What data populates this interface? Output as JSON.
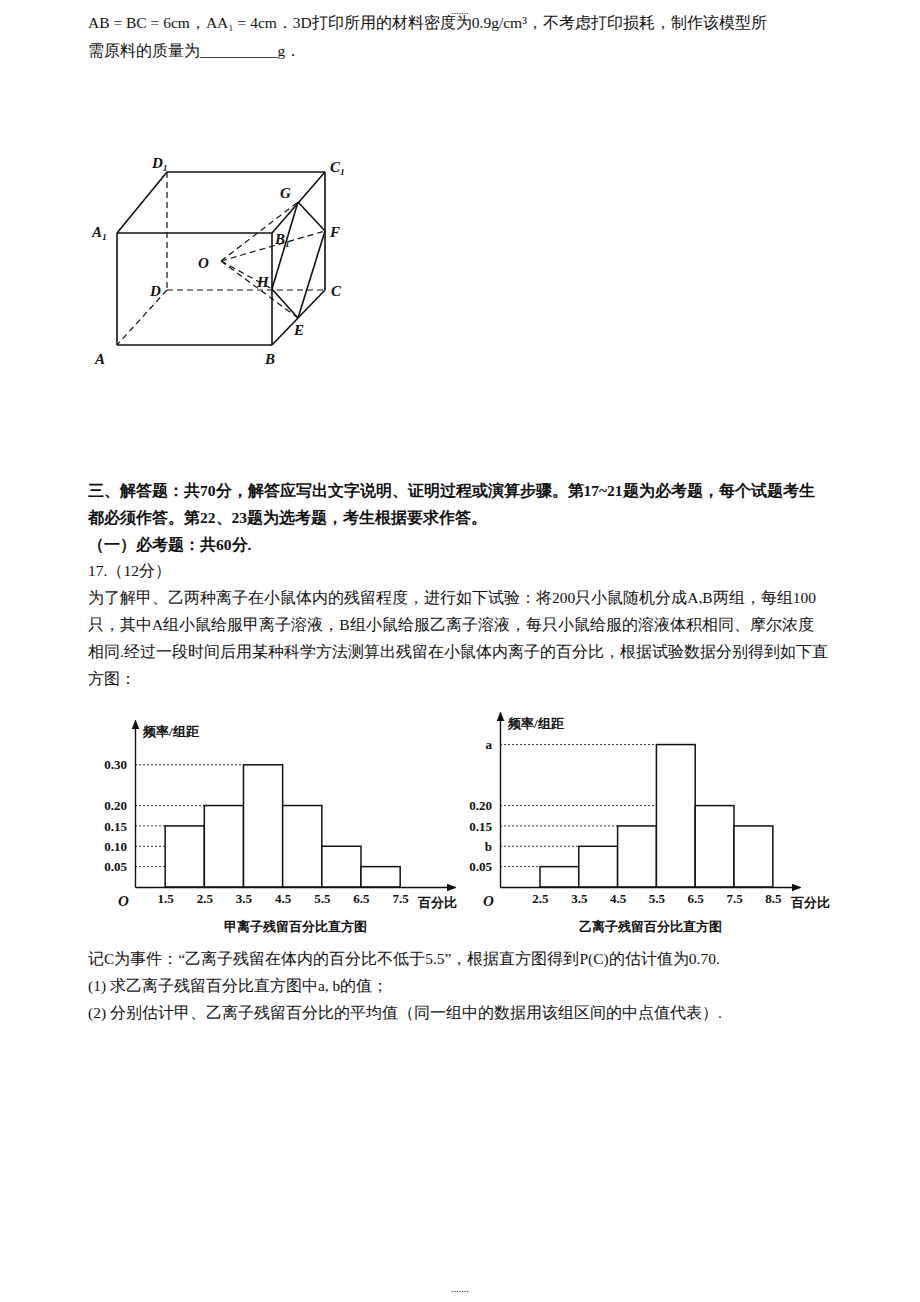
{
  "document": {
    "header": ".......",
    "footer": ".......",
    "intro_lines": [
      "AB = BC = 6cm，AA₁ = 4cm．3D打印所用的材料密度为0.9g/cm³，不考虑打印损耗，制作该模型所",
      "需原料的质量为__________g．"
    ],
    "figure": {
      "labels": [
        "D₁",
        "C₁",
        "A₁",
        "B₁",
        "G",
        "F",
        "O",
        "H",
        "D",
        "C",
        "E",
        "A",
        "B"
      ]
    },
    "section_lines": [
      "三、解答题：共70分，解答应写出文字说明、证明过程或演算步骤。第17~21题为必考题，每个试题考生",
      "都必须作答。第22、23题为选考题，考生根据要求作答。"
    ],
    "subsection": "（一）必考题：共60分.",
    "question_number": "17.（12分）",
    "question_lines": [
      "为了解甲、乙两种离子在小鼠体内的残留程度，进行如下试验：将200只小鼠随机分成A,B两组，每组100",
      "只，其中A组小鼠给服甲离子溶液，B组小鼠给服乙离子溶液，每只小鼠给服的溶液体积相同、摩尔浓度",
      "相同.经过一段时间后用某种科学方法测算出残留在小鼠体内离子的百分比，根据试验数据分别得到如下直",
      "方图："
    ],
    "after_lines": [
      "记C为事件：“乙离子残留在体内的百分比不低于5.5”，根据直方图得到P(C)的估计值为0.70.",
      "(1) 求乙离子残留百分比直方图中a, b的值；",
      "(2) 分别估计甲、乙离子残留百分比的平均值（同一组中的数据用该组区间的中点值代表）."
    ]
  },
  "chart_data": [
    {
      "type": "histogram",
      "title": "甲离子残留百分比直方图",
      "x_label": "百分比",
      "y_label": "频率/组距",
      "annotations": [
        "O"
      ],
      "bins": [
        1.5,
        2.5,
        3.5,
        4.5,
        5.5,
        6.5,
        7.5
      ],
      "values": [
        0.15,
        0.2,
        0.3,
        0.2,
        0.1,
        0.05
      ],
      "color": "#ffffff",
      "xlim": [
        0.73,
        8.9
      ],
      "ylim": [
        0,
        0.41
      ],
      "xticks": [
        1.5,
        2.5,
        3.5,
        4.5,
        5.5,
        6.5,
        7.5
      ],
      "yticks": [
        0.05,
        {
          "value": 0.1,
          "label": "0.10"
        },
        0.15,
        {
          "value": 0.2,
          "label": "0.20"
        },
        {
          "value": 0.3,
          "label": "0.30"
        }
      ],
      "grid": true
    },
    {
      "type": "histogram",
      "title": "乙离子残留百分比直方图",
      "x_label": "百分比",
      "y_label": "频率/组距",
      "annotations": [
        "O"
      ],
      "bins": [
        2.5,
        3.5,
        4.5,
        5.5,
        6.5,
        7.5,
        8.5
      ],
      "values": [
        0.05,
        0.1,
        0.15,
        0.35,
        0.2,
        0.15
      ],
      "color": "#ffffff",
      "xlim": [
        1.47,
        9.2
      ],
      "ylim": [
        0,
        0.43
      ],
      "xticks": [
        2.5,
        3.5,
        4.5,
        5.5,
        6.5,
        7.5,
        8.5
      ],
      "yticks": [
        0.05,
        {
          "value": 0.1,
          "label": "b"
        },
        0.15,
        {
          "value": 0.2,
          "label": "0.20"
        },
        {
          "value": 0.35,
          "label": "a"
        }
      ],
      "grid": true
    }
  ]
}
